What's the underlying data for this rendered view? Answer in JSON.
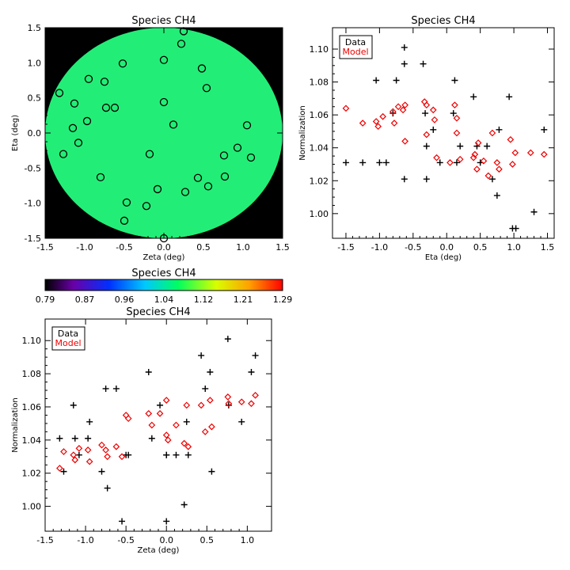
{
  "chart_data": [
    {
      "id": "map",
      "type": "scatter",
      "title": "Species CH4",
      "xlabel": "Zeta (deg)",
      "ylabel": "Eta (deg)",
      "xlim": [
        -1.5,
        1.5
      ],
      "ylim": [
        -1.5,
        1.5
      ],
      "xticks": [
        "-1.5",
        "-1.0",
        "-0.5",
        "0.0",
        "0.5",
        "1.0",
        "1.5"
      ],
      "yticks": [
        "-1.5",
        "-1.0",
        "-0.5",
        "0.0",
        "0.5",
        "1.0",
        "1.5"
      ],
      "background_color": "#000000",
      "field_color": "#22ee77",
      "points": [
        {
          "x": 0.25,
          "y": 1.45
        },
        {
          "x": 0.22,
          "y": 1.27
        },
        {
          "x": -0.52,
          "y": 0.99
        },
        {
          "x": 0.0,
          "y": 1.04
        },
        {
          "x": 0.48,
          "y": 0.92
        },
        {
          "x": -0.95,
          "y": 0.77
        },
        {
          "x": -0.75,
          "y": 0.73
        },
        {
          "x": 0.54,
          "y": 0.64
        },
        {
          "x": -1.32,
          "y": 0.57
        },
        {
          "x": -1.13,
          "y": 0.42
        },
        {
          "x": 0.0,
          "y": 0.44
        },
        {
          "x": -0.73,
          "y": 0.36
        },
        {
          "x": -0.62,
          "y": 0.36
        },
        {
          "x": -0.97,
          "y": 0.17
        },
        {
          "x": 0.12,
          "y": 0.12
        },
        {
          "x": 1.05,
          "y": 0.11
        },
        {
          "x": -1.15,
          "y": 0.07
        },
        {
          "x": -1.08,
          "y": -0.14
        },
        {
          "x": 0.93,
          "y": -0.21
        },
        {
          "x": -1.27,
          "y": -0.3
        },
        {
          "x": -0.18,
          "y": -0.3
        },
        {
          "x": 0.76,
          "y": -0.32
        },
        {
          "x": 1.1,
          "y": -0.35
        },
        {
          "x": 0.77,
          "y": -0.62
        },
        {
          "x": -0.8,
          "y": -0.63
        },
        {
          "x": 0.43,
          "y": -0.64
        },
        {
          "x": 0.56,
          "y": -0.76
        },
        {
          "x": -0.08,
          "y": -0.8
        },
        {
          "x": 0.27,
          "y": -0.84
        },
        {
          "x": -0.47,
          "y": -0.99
        },
        {
          "x": -0.22,
          "y": -1.04
        },
        {
          "x": -0.5,
          "y": -1.25
        },
        {
          "x": 0.0,
          "y": -1.5
        }
      ]
    },
    {
      "id": "colorbar",
      "type": "heatmap",
      "title": "Species CH4",
      "ticks": [
        "0.79",
        "0.87",
        "0.96",
        "1.04",
        "1.12",
        "1.21",
        "1.29"
      ]
    },
    {
      "id": "eta",
      "type": "scatter",
      "title": "Species CH4",
      "xlabel": "Eta (deg)",
      "ylabel": "Normalization",
      "xlim": [
        -1.7,
        1.6
      ],
      "ylim": [
        0.985,
        1.113
      ],
      "xticks": [
        "-1.5",
        "-1.0",
        "-0.5",
        "0.0",
        "0.5",
        "1.0",
        "1.5"
      ],
      "yticks": [
        "1.00",
        "1.02",
        "1.04",
        "1.06",
        "1.08",
        "1.10"
      ],
      "legend": {
        "items": [
          "Data",
          "Model"
        ],
        "position": "top-left"
      },
      "series": [
        {
          "name": "Data",
          "marker": "plus",
          "color": "#000000",
          "points": [
            {
              "x": -1.5,
              "y": 1.031
            },
            {
              "x": -1.25,
              "y": 1.031
            },
            {
              "x": -1.05,
              "y": 1.081
            },
            {
              "x": -1.0,
              "y": 1.031
            },
            {
              "x": -0.9,
              "y": 1.031
            },
            {
              "x": -0.8,
              "y": 1.061
            },
            {
              "x": -0.75,
              "y": 1.081
            },
            {
              "x": -0.63,
              "y": 1.101
            },
            {
              "x": -0.63,
              "y": 1.091
            },
            {
              "x": -0.63,
              "y": 1.021
            },
            {
              "x": -0.35,
              "y": 1.091
            },
            {
              "x": -0.32,
              "y": 1.061
            },
            {
              "x": -0.3,
              "y": 1.041
            },
            {
              "x": -0.3,
              "y": 1.021
            },
            {
              "x": -0.2,
              "y": 1.051
            },
            {
              "x": -0.1,
              "y": 1.031
            },
            {
              "x": 0.1,
              "y": 1.061
            },
            {
              "x": 0.12,
              "y": 1.081
            },
            {
              "x": 0.15,
              "y": 1.031
            },
            {
              "x": 0.2,
              "y": 1.041
            },
            {
              "x": 0.4,
              "y": 1.071
            },
            {
              "x": 0.45,
              "y": 1.041
            },
            {
              "x": 0.5,
              "y": 1.031
            },
            {
              "x": 0.6,
              "y": 1.041
            },
            {
              "x": 0.68,
              "y": 1.021
            },
            {
              "x": 0.75,
              "y": 1.011
            },
            {
              "x": 0.78,
              "y": 1.051
            },
            {
              "x": 0.93,
              "y": 1.071
            },
            {
              "x": 0.98,
              "y": 0.991
            },
            {
              "x": 1.03,
              "y": 0.991
            },
            {
              "x": 1.3,
              "y": 1.001
            },
            {
              "x": 1.45,
              "y": 1.051
            }
          ]
        },
        {
          "name": "Model",
          "marker": "diamond",
          "color": "#ee0000",
          "points": [
            {
              "x": -1.5,
              "y": 1.064
            },
            {
              "x": -1.25,
              "y": 1.055
            },
            {
              "x": -1.05,
              "y": 1.056
            },
            {
              "x": -1.02,
              "y": 1.053
            },
            {
              "x": -0.95,
              "y": 1.059
            },
            {
              "x": -0.8,
              "y": 1.062
            },
            {
              "x": -0.78,
              "y": 1.055
            },
            {
              "x": -0.72,
              "y": 1.065
            },
            {
              "x": -0.65,
              "y": 1.063
            },
            {
              "x": -0.62,
              "y": 1.066
            },
            {
              "x": -0.62,
              "y": 1.044
            },
            {
              "x": -0.33,
              "y": 1.068
            },
            {
              "x": -0.3,
              "y": 1.066
            },
            {
              "x": -0.3,
              "y": 1.048
            },
            {
              "x": -0.2,
              "y": 1.063
            },
            {
              "x": -0.18,
              "y": 1.057
            },
            {
              "x": -0.15,
              "y": 1.034
            },
            {
              "x": 0.05,
              "y": 1.031
            },
            {
              "x": 0.12,
              "y": 1.066
            },
            {
              "x": 0.15,
              "y": 1.058
            },
            {
              "x": 0.15,
              "y": 1.049
            },
            {
              "x": 0.2,
              "y": 1.033
            },
            {
              "x": 0.4,
              "y": 1.034
            },
            {
              "x": 0.42,
              "y": 1.036
            },
            {
              "x": 0.45,
              "y": 1.027
            },
            {
              "x": 0.47,
              "y": 1.043
            },
            {
              "x": 0.55,
              "y": 1.032
            },
            {
              "x": 0.62,
              "y": 1.023
            },
            {
              "x": 0.68,
              "y": 1.049
            },
            {
              "x": 0.75,
              "y": 1.031
            },
            {
              "x": 0.78,
              "y": 1.027
            },
            {
              "x": 0.95,
              "y": 1.045
            },
            {
              "x": 0.98,
              "y": 1.03
            },
            {
              "x": 1.02,
              "y": 1.037
            },
            {
              "x": 1.25,
              "y": 1.037
            },
            {
              "x": 1.45,
              "y": 1.036
            }
          ]
        }
      ]
    },
    {
      "id": "zeta",
      "type": "scatter",
      "title": "Species CH4",
      "xlabel": "Zeta (deg)",
      "ylabel": "Normalization",
      "xlim": [
        -1.5,
        1.3
      ],
      "ylim": [
        0.985,
        1.113
      ],
      "xticks": [
        "-1.5",
        "-1.0",
        "-0.5",
        "0.0",
        "0.5",
        "1.0"
      ],
      "yticks": [
        "1.00",
        "1.02",
        "1.04",
        "1.06",
        "1.08",
        "1.10"
      ],
      "legend": {
        "items": [
          "Data",
          "Model"
        ],
        "position": "top-left"
      },
      "series": [
        {
          "name": "Data",
          "marker": "plus",
          "color": "#000000",
          "points": [
            {
              "x": -1.32,
              "y": 1.041
            },
            {
              "x": -1.27,
              "y": 1.021
            },
            {
              "x": -1.15,
              "y": 1.061
            },
            {
              "x": -1.13,
              "y": 1.041
            },
            {
              "x": -1.08,
              "y": 1.031
            },
            {
              "x": -0.97,
              "y": 1.041
            },
            {
              "x": -0.95,
              "y": 1.051
            },
            {
              "x": -0.8,
              "y": 1.021
            },
            {
              "x": -0.75,
              "y": 1.071
            },
            {
              "x": -0.73,
              "y": 1.011
            },
            {
              "x": -0.62,
              "y": 1.071
            },
            {
              "x": -0.55,
              "y": 0.991
            },
            {
              "x": -0.5,
              "y": 1.031
            },
            {
              "x": -0.47,
              "y": 1.031
            },
            {
              "x": -0.22,
              "y": 1.081
            },
            {
              "x": -0.18,
              "y": 1.041
            },
            {
              "x": -0.08,
              "y": 1.061
            },
            {
              "x": 0.0,
              "y": 1.031
            },
            {
              "x": 0.0,
              "y": 0.991
            },
            {
              "x": 0.0,
              "y": 1.031
            },
            {
              "x": 0.12,
              "y": 1.031
            },
            {
              "x": 0.22,
              "y": 1.001
            },
            {
              "x": 0.25,
              "y": 1.051
            },
            {
              "x": 0.27,
              "y": 1.031
            },
            {
              "x": 0.43,
              "y": 1.091
            },
            {
              "x": 0.48,
              "y": 1.071
            },
            {
              "x": 0.54,
              "y": 1.081
            },
            {
              "x": 0.56,
              "y": 1.021
            },
            {
              "x": 0.76,
              "y": 1.101
            },
            {
              "x": 0.77,
              "y": 1.061
            },
            {
              "x": 0.93,
              "y": 1.051
            },
            {
              "x": 1.05,
              "y": 1.081
            },
            {
              "x": 1.1,
              "y": 1.091
            }
          ]
        },
        {
          "name": "Model",
          "marker": "diamond",
          "color": "#ee0000",
          "points": [
            {
              "x": -1.32,
              "y": 1.023
            },
            {
              "x": -1.27,
              "y": 1.033
            },
            {
              "x": -1.15,
              "y": 1.031
            },
            {
              "x": -1.13,
              "y": 1.028
            },
            {
              "x": -1.08,
              "y": 1.035
            },
            {
              "x": -0.97,
              "y": 1.034
            },
            {
              "x": -0.95,
              "y": 1.027
            },
            {
              "x": -0.8,
              "y": 1.037
            },
            {
              "x": -0.75,
              "y": 1.034
            },
            {
              "x": -0.73,
              "y": 1.03
            },
            {
              "x": -0.62,
              "y": 1.036
            },
            {
              "x": -0.55,
              "y": 1.03
            },
            {
              "x": -0.5,
              "y": 1.055
            },
            {
              "x": -0.47,
              "y": 1.053
            },
            {
              "x": -0.22,
              "y": 1.056
            },
            {
              "x": -0.18,
              "y": 1.049
            },
            {
              "x": -0.08,
              "y": 1.056
            },
            {
              "x": 0.0,
              "y": 1.064
            },
            {
              "x": 0.0,
              "y": 1.043
            },
            {
              "x": 0.02,
              "y": 1.04
            },
            {
              "x": 0.12,
              "y": 1.049
            },
            {
              "x": 0.22,
              "y": 1.038
            },
            {
              "x": 0.25,
              "y": 1.061
            },
            {
              "x": 0.27,
              "y": 1.036
            },
            {
              "x": 0.43,
              "y": 1.061
            },
            {
              "x": 0.48,
              "y": 1.045
            },
            {
              "x": 0.54,
              "y": 1.064
            },
            {
              "x": 0.56,
              "y": 1.048
            },
            {
              "x": 0.76,
              "y": 1.066
            },
            {
              "x": 0.77,
              "y": 1.062
            },
            {
              "x": 0.93,
              "y": 1.063
            },
            {
              "x": 1.05,
              "y": 1.062
            },
            {
              "x": 1.1,
              "y": 1.067
            }
          ]
        }
      ]
    }
  ]
}
